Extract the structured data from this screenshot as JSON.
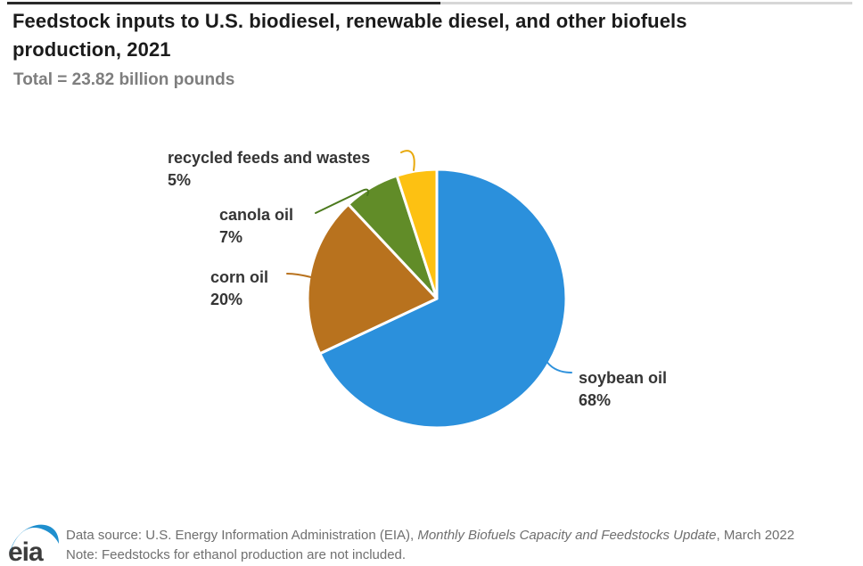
{
  "header": {
    "title": "Feedstock inputs to U.S. biodiesel, renewable diesel, and other biofuels production, 2021",
    "subtitle": "Total = 23.82 billion pounds"
  },
  "chart_data": {
    "type": "pie",
    "title": "Feedstock inputs to U.S. biodiesel, renewable diesel, and other biofuels production, 2021",
    "subtitle": "Total = 23.82 billion pounds",
    "total": "23.82 billion pounds",
    "units": "percent of total feedstock inputs",
    "direction": "clockwise",
    "start_angle_deg": 0,
    "legend_position": "callout-labels",
    "slices": [
      {
        "label": "soybean oil",
        "value_pct": 68,
        "pct_label": "68%",
        "color": "#2b90dc"
      },
      {
        "label": "corn oil",
        "value_pct": 20,
        "pct_label": "20%",
        "color": "#b8721e"
      },
      {
        "label": "canola oil",
        "value_pct": 7,
        "pct_label": "7%",
        "color": "#618c28"
      },
      {
        "label": "recycled feeds and wastes",
        "value_pct": 5,
        "pct_label": "5%",
        "color": "#fdc112"
      }
    ]
  },
  "footer": {
    "source_prefix": "Data source: U.S. Energy Information Administration (EIA), ",
    "source_italic": "Monthly Biofuels Capacity and Feedstocks Update",
    "source_suffix": ", March 2022",
    "note": "Note: Feedstocks for ethanol production are not included.",
    "logo_text": "eia"
  },
  "colors": {
    "soybean_oil": "#2b90dc",
    "corn_oil": "#b8721e",
    "canola_oil": "#618c28",
    "recycled_feeds_and_wastes": "#fdc112",
    "eia_swoosh_blue": "#1f8fce",
    "title_text": "#1b1b1b",
    "subtitle_text": "#7e7e7e",
    "footer_text": "#6f6f6f"
  }
}
